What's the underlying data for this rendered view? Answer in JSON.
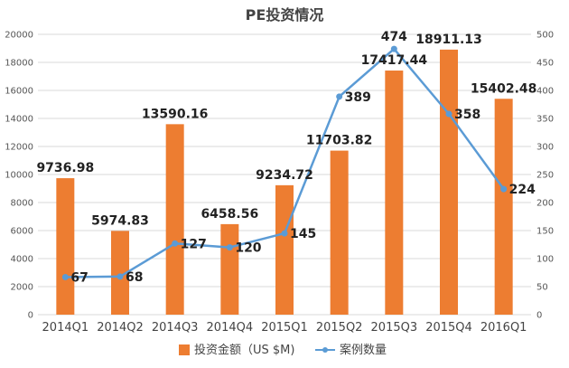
{
  "chart_data": {
    "type": "bar",
    "title": "PE投资情况",
    "categories": [
      "2014Q1",
      "2014Q2",
      "2014Q3",
      "2014Q4",
      "2015Q1",
      "2015Q2",
      "2015Q3",
      "2015Q4",
      "2016Q1"
    ],
    "series": [
      {
        "name": "投资金额（US $M)",
        "type": "bar",
        "axis": "left",
        "color": "#ED7D31",
        "values": [
          9736.98,
          5974.83,
          13590.16,
          6458.56,
          9234.72,
          11703.82,
          17417.44,
          18911.13,
          15402.48
        ],
        "labels": [
          "9736.98",
          "5974.83",
          "13590.16",
          "6458.56",
          "9234.72",
          "11703.82",
          "17417.44",
          "18911.13",
          "15402.48"
        ]
      },
      {
        "name": "案例数量",
        "type": "line",
        "axis": "right",
        "color": "#5B9BD5",
        "values": [
          67,
          68,
          127,
          120,
          145,
          389,
          474,
          358,
          224
        ],
        "labels": [
          "67",
          "68",
          "127",
          "120",
          "145",
          "389",
          "474",
          "358",
          "224"
        ]
      }
    ],
    "y_left": {
      "min": 0,
      "max": 20000,
      "ticks": [
        "0",
        "2000",
        "4000",
        "6000",
        "8000",
        "10000",
        "12000",
        "14000",
        "16000",
        "18000",
        "20000"
      ]
    },
    "y_right": {
      "min": 0,
      "max": 500,
      "ticks": [
        "0",
        "50",
        "100",
        "150",
        "200",
        "250",
        "300",
        "350",
        "400",
        "450",
        "500"
      ]
    },
    "grid": true,
    "legend_position": "bottom"
  }
}
